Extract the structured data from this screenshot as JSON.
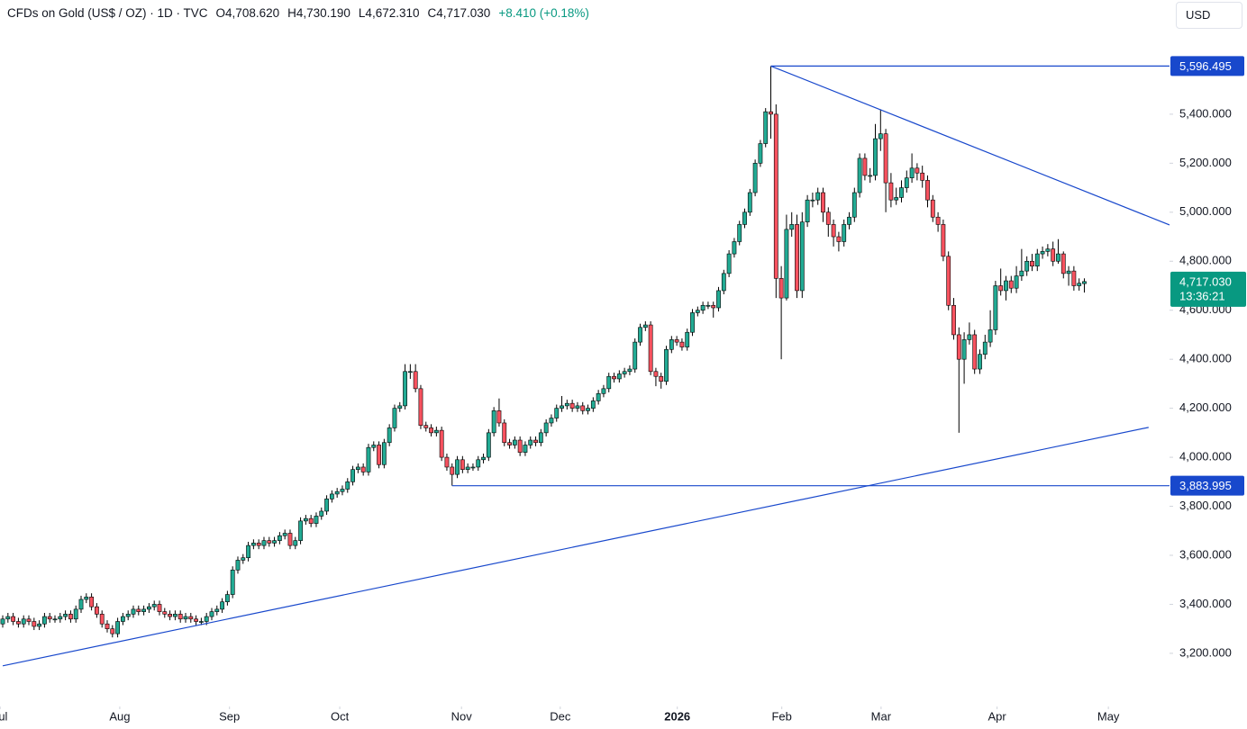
{
  "chart_data": {
    "type": "candlestick",
    "title": "CFDs on Gold (US$ / OZ) · 1D · TVC",
    "ohlc_labels": [
      "O4,708.620",
      "H4,730.190",
      "L4,672.310",
      "C4,717.030",
      "+8.410 (+0.18%)"
    ],
    "currency": "USD",
    "up_color": "#22ab94",
    "down_color": "#f7525f",
    "line_color": "#1848cc",
    "last_price": {
      "value": 4717.03,
      "label": "4,717.030",
      "countdown": "13:36:21",
      "color": "#089981"
    },
    "xlim": [
      -0.52,
      223.3
    ],
    "ylim": [
      2983,
      5866
    ],
    "xticks": [
      {
        "value": -0.5,
        "label": "Jul"
      },
      {
        "value": 22.4,
        "label": "Aug"
      },
      {
        "value": 43.4,
        "label": "Sep"
      },
      {
        "value": 64.5,
        "label": "Oct"
      },
      {
        "value": 87.8,
        "label": "Nov"
      },
      {
        "value": 106.7,
        "label": "Dec"
      },
      {
        "value": 129.1,
        "label": "2026",
        "bold": true
      },
      {
        "value": 149.1,
        "label": "Feb"
      },
      {
        "value": 168.1,
        "label": "Mar"
      },
      {
        "value": 190.3,
        "label": "Apr"
      },
      {
        "value": 211.6,
        "label": "May"
      }
    ],
    "yticks": [
      {
        "value": 3200,
        "label": "3,200.000"
      },
      {
        "value": 3400,
        "label": "3,400.000"
      },
      {
        "value": 3600,
        "label": "3,600.000"
      },
      {
        "value": 3800,
        "label": "3,800.000"
      },
      {
        "value": 4000,
        "label": "4,000.000"
      },
      {
        "value": 4200,
        "label": "4,200.000"
      },
      {
        "value": 4400,
        "label": "4,400.000"
      },
      {
        "value": 4600,
        "label": "4,600.000"
      },
      {
        "value": 4800,
        "label": "4,800.000"
      },
      {
        "value": 5000,
        "label": "5,000.000"
      },
      {
        "value": 5200,
        "label": "5,200.000"
      },
      {
        "value": 5400,
        "label": "5,400.000"
      }
    ],
    "price_lines": [
      {
        "value": 5596.495,
        "label": "5,596.495",
        "from": 147
      },
      {
        "value": 3883.995,
        "label": "3,883.995",
        "from": 86
      }
    ],
    "trend_lines": [
      {
        "x": [
          147,
          223.3
        ],
        "y": [
          5596.495,
          4948
        ]
      },
      {
        "x": [
          0,
          219.3
        ],
        "y": [
          3149,
          4122
        ]
      }
    ],
    "open": [
      3320,
      3340,
      3350,
      3330,
      3320,
      3340,
      3330,
      3310,
      3320,
      3350,
      3340,
      3340,
      3350,
      3360,
      3340,
      3380,
      3420,
      3430,
      3390,
      3360,
      3320,
      3300,
      3280,
      3330,
      3350,
      3360,
      3380,
      3370,
      3380,
      3390,
      3400,
      3370,
      3360,
      3350,
      3360,
      3340,
      3350,
      3340,
      3330,
      3330,
      3350,
      3370,
      3380,
      3410,
      3440,
      3540,
      3580,
      3590,
      3640,
      3650,
      3640,
      3660,
      3650,
      3660,
      3680,
      3690,
      3640,
      3660,
      3740,
      3750,
      3730,
      3760,
      3780,
      3830,
      3850,
      3860,
      3870,
      3900,
      3950,
      3960,
      3940,
      4040,
      4050,
      3970,
      4060,
      4120,
      4200,
      4210,
      4350,
      4350,
      4280,
      4130,
      4120,
      4100,
      4110,
      4000,
      3960,
      3930,
      3990,
      3950,
      3960,
      3960,
      3990,
      4000,
      4100,
      4190,
      4140,
      4060,
      4050,
      4070,
      4020,
      4050,
      4070,
      4060,
      4100,
      4140,
      4160,
      4200,
      4210,
      4220,
      4200,
      4210,
      4190,
      4200,
      4230,
      4260,
      4280,
      4330,
      4320,
      4340,
      4350,
      4360,
      4470,
      4530,
      4540,
      4350,
      4330,
      4310,
      4440,
      4480,
      4470,
      4450,
      4510,
      4590,
      4600,
      4620,
      4620,
      4610,
      4680,
      4750,
      4830,
      4880,
      4950,
      5000,
      5080,
      5200,
      5280,
      5410,
      5400,
      4730,
      4650,
      4930,
      4950,
      4680,
      4960,
      5050,
      5050,
      5080,
      5000,
      4950,
      4900,
      4880,
      4950,
      4980,
      5080,
      5220,
      5150,
      5150,
      5300,
      5320,
      5120,
      5050,
      5060,
      5100,
      5140,
      5180,
      5160,
      5130,
      5050,
      4980,
      4950,
      4820,
      4620,
      4500,
      4400,
      4480,
      4500,
      4360,
      4420,
      4470,
      4520,
      4700,
      4680,
      4720,
      4690,
      4740,
      4760,
      4800,
      4780,
      4830,
      4840,
      4850,
      4800,
      4830,
      4750,
      4760,
      4700,
      4708.62
    ],
    "high": [
      3355,
      3365,
      3365,
      3345,
      3355,
      3355,
      3345,
      3335,
      3365,
      3365,
      3355,
      3365,
      3375,
      3375,
      3395,
      3435,
      3445,
      3445,
      3405,
      3375,
      3335,
      3315,
      3345,
      3365,
      3375,
      3395,
      3395,
      3395,
      3405,
      3415,
      3415,
      3385,
      3375,
      3375,
      3375,
      3365,
      3365,
      3355,
      3345,
      3365,
      3385,
      3395,
      3425,
      3455,
      3555,
      3595,
      3605,
      3655,
      3665,
      3665,
      3675,
      3675,
      3675,
      3695,
      3705,
      3705,
      3675,
      3755,
      3765,
      3765,
      3775,
      3795,
      3845,
      3865,
      3875,
      3885,
      3915,
      3965,
      3975,
      3975,
      4055,
      4065,
      4065,
      4075,
      4135,
      4215,
      4225,
      4380,
      4380,
      4380,
      4295,
      4145,
      4135,
      4125,
      4125,
      4015,
      3975,
      4005,
      4005,
      3975,
      3975,
      4005,
      4015,
      4115,
      4205,
      4240,
      4155,
      4075,
      4085,
      4085,
      4065,
      4085,
      4085,
      4115,
      4155,
      4175,
      4215,
      4250,
      4235,
      4235,
      4225,
      4225,
      4215,
      4245,
      4275,
      4295,
      4345,
      4345,
      4355,
      4365,
      4375,
      4485,
      4545,
      4555,
      4555,
      4365,
      4345,
      4455,
      4495,
      4495,
      4485,
      4525,
      4605,
      4615,
      4635,
      4635,
      4635,
      4695,
      4765,
      4845,
      4895,
      4965,
      5015,
      5095,
      5215,
      5295,
      5425,
      5596,
      5440,
      4780,
      4990,
      5000,
      4990,
      5000,
      5070,
      5080,
      5100,
      5100,
      5020,
      4970,
      4920,
      4970,
      5000,
      5100,
      5240,
      5240,
      5180,
      5360,
      5420,
      5340,
      5160,
      5100,
      5130,
      5170,
      5240,
      5200,
      5190,
      5150,
      5070,
      5000,
      4970,
      4840,
      4650,
      4530,
      4510,
      4550,
      4520,
      4440,
      4500,
      4600,
      4720,
      4770,
      4740,
      4740,
      4780,
      4850,
      4820,
      4830,
      4850,
      4860,
      4870,
      4880,
      4890,
      4840,
      4780,
      4780,
      4730,
      4730.19
    ],
    "low": [
      3305,
      3325,
      3315,
      3305,
      3305,
      3315,
      3295,
      3295,
      3305,
      3325,
      3325,
      3325,
      3335,
      3325,
      3325,
      3365,
      3405,
      3375,
      3345,
      3305,
      3285,
      3265,
      3265,
      3315,
      3335,
      3345,
      3355,
      3355,
      3365,
      3375,
      3355,
      3345,
      3335,
      3335,
      3325,
      3325,
      3325,
      3315,
      3315,
      3315,
      3335,
      3355,
      3365,
      3395,
      3425,
      3525,
      3565,
      3575,
      3625,
      3625,
      3625,
      3635,
      3635,
      3645,
      3665,
      3625,
      3625,
      3645,
      3725,
      3715,
      3715,
      3745,
      3765,
      3815,
      3835,
      3845,
      3855,
      3885,
      3935,
      3925,
      3925,
      4025,
      3955,
      3955,
      4045,
      4105,
      4185,
      4195,
      4320,
      4265,
      4115,
      4105,
      4085,
      4085,
      3985,
      3945,
      3884,
      3915,
      3935,
      3935,
      3945,
      3945,
      3975,
      3985,
      4085,
      4125,
      4045,
      4035,
      4035,
      4005,
      4005,
      4035,
      4045,
      4045,
      4085,
      4125,
      4145,
      4185,
      4195,
      4185,
      4185,
      4175,
      4175,
      4185,
      4215,
      4245,
      4265,
      4305,
      4305,
      4325,
      4335,
      4345,
      4455,
      4515,
      4335,
      4290,
      4280,
      4295,
      4425,
      4455,
      4435,
      4435,
      4495,
      4575,
      4585,
      4605,
      4570,
      4595,
      4665,
      4735,
      4815,
      4865,
      4935,
      4985,
      5065,
      5185,
      5265,
      5300,
      4650,
      4400,
      4640,
      4900,
      4650,
      4650,
      4940,
      5020,
      5030,
      4960,
      4900,
      4860,
      4840,
      4860,
      4930,
      4960,
      5060,
      5130,
      5120,
      5130,
      5250,
      5000,
      5020,
      5030,
      5040,
      5080,
      5120,
      5130,
      5100,
      5020,
      4960,
      4920,
      4800,
      4600,
      4480,
      4100,
      4300,
      4460,
      4340,
      4340,
      4400,
      4450,
      4500,
      4660,
      4640,
      4670,
      4670,
      4720,
      4740,
      4760,
      4760,
      4810,
      4820,
      4780,
      4790,
      4730,
      4700,
      4680,
      4680,
      4672.31
    ],
    "close": [
      3340,
      3350,
      3330,
      3320,
      3340,
      3330,
      3310,
      3320,
      3350,
      3340,
      3340,
      3350,
      3360,
      3340,
      3380,
      3420,
      3430,
      3390,
      3360,
      3320,
      3300,
      3280,
      3330,
      3350,
      3360,
      3380,
      3370,
      3380,
      3390,
      3400,
      3370,
      3360,
      3350,
      3360,
      3340,
      3350,
      3340,
      3330,
      3330,
      3350,
      3370,
      3380,
      3410,
      3440,
      3540,
      3580,
      3590,
      3640,
      3650,
      3640,
      3660,
      3650,
      3660,
      3680,
      3690,
      3640,
      3660,
      3740,
      3750,
      3730,
      3760,
      3780,
      3830,
      3850,
      3860,
      3870,
      3900,
      3950,
      3960,
      3940,
      4040,
      4050,
      3970,
      4060,
      4120,
      4200,
      4210,
      4350,
      4350,
      4280,
      4130,
      4120,
      4100,
      4110,
      4000,
      3960,
      3930,
      3990,
      3950,
      3960,
      3960,
      3990,
      4000,
      4100,
      4190,
      4140,
      4060,
      4050,
      4070,
      4020,
      4050,
      4070,
      4060,
      4100,
      4140,
      4160,
      4200,
      4210,
      4220,
      4200,
      4210,
      4190,
      4200,
      4230,
      4260,
      4280,
      4330,
      4320,
      4340,
      4350,
      4360,
      4470,
      4530,
      4540,
      4350,
      4330,
      4310,
      4440,
      4480,
      4470,
      4450,
      4510,
      4590,
      4600,
      4620,
      4620,
      4610,
      4680,
      4750,
      4830,
      4880,
      4950,
      5000,
      5080,
      5200,
      5280,
      5410,
      5400,
      4730,
      4650,
      4930,
      4950,
      4680,
      4960,
      5050,
      5050,
      5080,
      5000,
      4950,
      4900,
      4880,
      4950,
      4980,
      5080,
      5220,
      5150,
      5150,
      5300,
      5320,
      5120,
      5050,
      5060,
      5100,
      5140,
      5180,
      5160,
      5130,
      5050,
      4980,
      4950,
      4820,
      4620,
      4500,
      4400,
      4480,
      4500,
      4360,
      4420,
      4470,
      4520,
      4700,
      4680,
      4720,
      4690,
      4740,
      4760,
      4800,
      4780,
      4830,
      4840,
      4850,
      4800,
      4830,
      4750,
      4760,
      4700,
      4710,
      4717.03
    ]
  }
}
